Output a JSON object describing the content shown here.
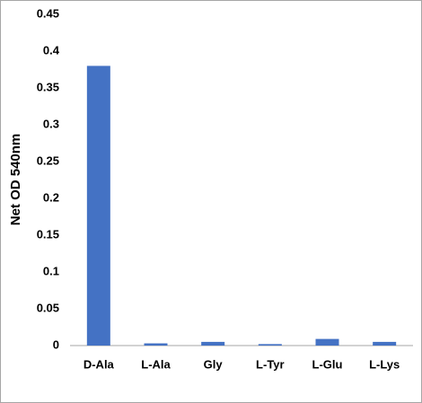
{
  "chart_data": {
    "type": "bar",
    "y_label": "Net OD 540nm",
    "categories": [
      "D-Ala",
      "L-Ala",
      "Gly",
      "L-Tyr",
      "L-Glu",
      "L-Lys"
    ],
    "values": [
      0.38,
      0.003,
      0.005,
      0.002,
      0.009,
      0.005
    ],
    "color": "#4472c4",
    "ylim": [
      0,
      0.45
    ],
    "yticks": [
      0,
      0.05,
      0.1,
      0.15,
      0.2,
      0.25,
      0.3,
      0.35,
      0.4,
      0.45
    ],
    "grid": false
  }
}
